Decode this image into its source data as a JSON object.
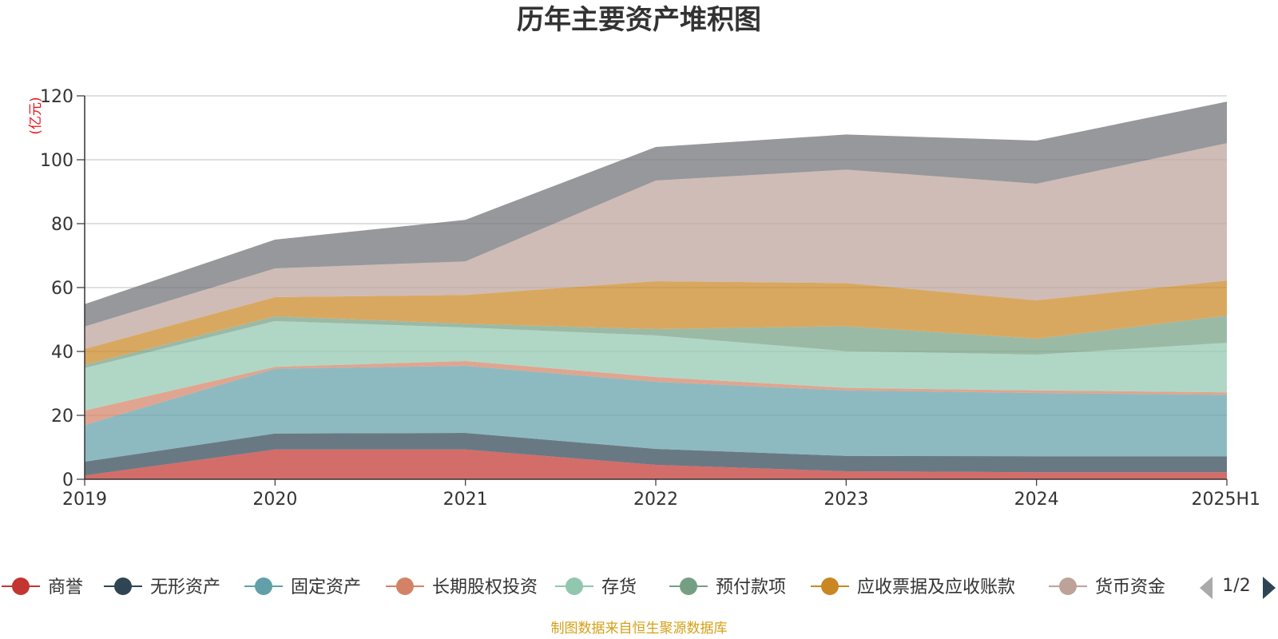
{
  "chart_data": {
    "type": "area",
    "stacked": true,
    "title": "历年主要资产堆积图",
    "ylabel": "(亿元)",
    "categories": [
      "2019",
      "2020",
      "2021",
      "2022",
      "2023",
      "2024",
      "2025H1"
    ],
    "ylim": [
      0,
      120
    ],
    "yticks": [
      0,
      20,
      40,
      60,
      80,
      100,
      120
    ],
    "grid": true,
    "series": [
      {
        "name": "商誉",
        "color": "#c23531",
        "values": [
          1.2,
          9.3,
          9.3,
          4.5,
          2.5,
          2.2,
          2.2
        ]
      },
      {
        "name": "无形资产",
        "color": "#2f4554",
        "values": [
          4.3,
          5.0,
          5.2,
          5.0,
          4.8,
          5.0,
          5.0
        ]
      },
      {
        "name": "固定资产",
        "color": "#61a0a8",
        "values": [
          11.5,
          20.3,
          21.0,
          21.0,
          20.5,
          19.8,
          19.2
        ]
      },
      {
        "name": "长期股权投资",
        "color": "#d48265",
        "values": [
          4.5,
          0.6,
          1.5,
          1.5,
          0.8,
          0.8,
          0.8
        ]
      },
      {
        "name": "存货",
        "color": "#91c7ae",
        "values": [
          13.3,
          14.3,
          10.5,
          13.0,
          11.5,
          11.2,
          15.5
        ]
      },
      {
        "name": "预付款项",
        "color": "#749f83",
        "values": [
          1.0,
          1.5,
          1.2,
          2.0,
          7.8,
          5.0,
          8.5
        ]
      },
      {
        "name": "应收票据及应收账款",
        "color": "#ca8622",
        "values": [
          5.0,
          6.0,
          9.0,
          15.0,
          13.5,
          12.0,
          11.0
        ]
      },
      {
        "name": "货币资金",
        "color": "#bda29a",
        "values": [
          7.0,
          9.0,
          10.5,
          31.5,
          35.5,
          36.5,
          43.0
        ]
      },
      {
        "name": "",
        "color": "#6e7074",
        "values": [
          7.0,
          9.0,
          13.0,
          10.5,
          11.0,
          13.5,
          13.0
        ]
      }
    ],
    "legend_position": "bottom",
    "legend_page": "1/2",
    "source_note": "制图数据来自恒生聚源数据库"
  }
}
